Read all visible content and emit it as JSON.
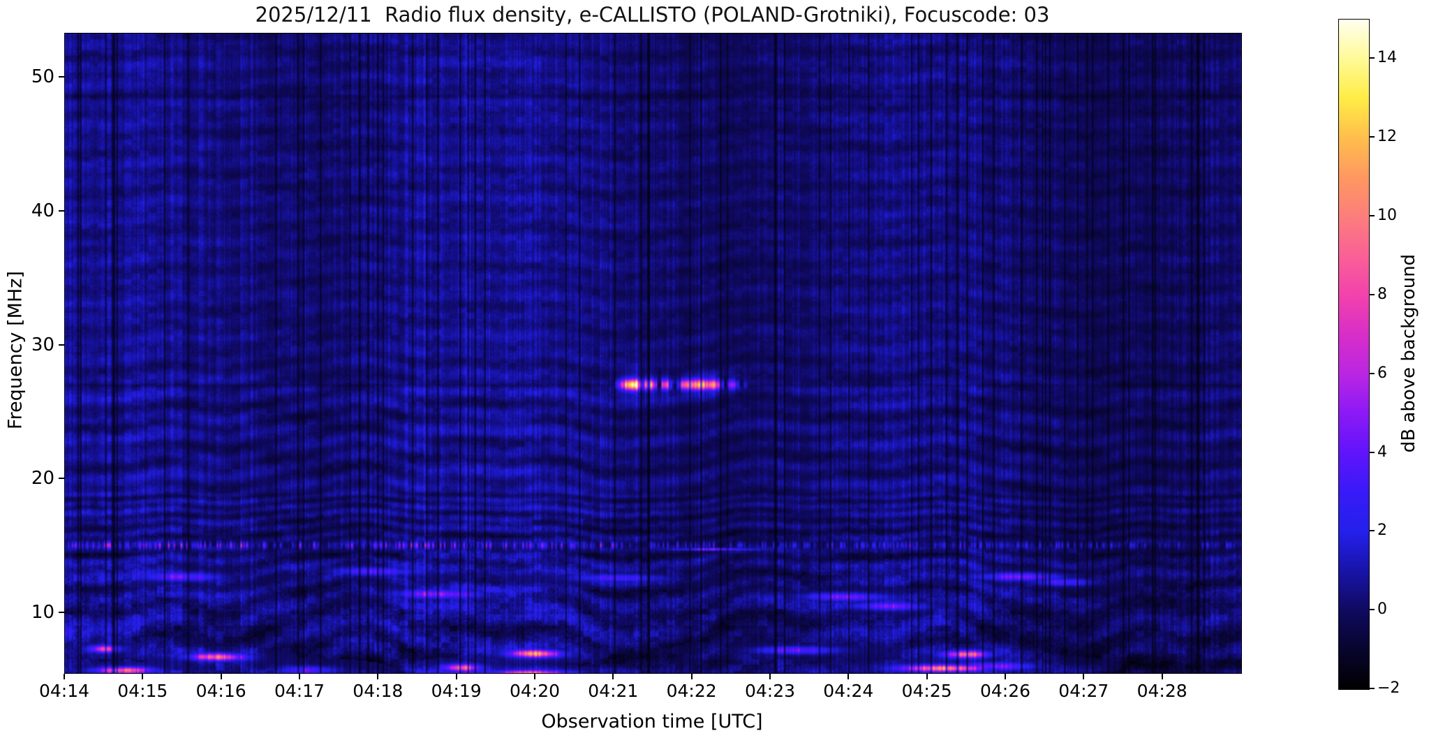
{
  "chart": {
    "title": "2025/12/11  Radio flux density, e-CALLISTO (POLAND-Grotniki), Focuscode: 03",
    "xlabel": "Observation time [UTC]",
    "ylabel": "Frequency [MHz]",
    "colorbar_label": "dB above background"
  },
  "chart_data": {
    "type": "heatmap",
    "title": "2025/12/11  Radio flux density, e-CALLISTO (POLAND-Grotniki), Focuscode: 03",
    "xlabel": "Observation time [UTC]",
    "ylabel": "Frequency [MHz]",
    "x_range_utc": [
      "04:14:00",
      "04:29:00"
    ],
    "x_ticks": [
      {
        "label": "04:14",
        "minute": 0
      },
      {
        "label": "04:15",
        "minute": 1
      },
      {
        "label": "04:16",
        "minute": 2
      },
      {
        "label": "04:17",
        "minute": 3
      },
      {
        "label": "04:18",
        "minute": 4
      },
      {
        "label": "04:19",
        "minute": 5
      },
      {
        "label": "04:20",
        "minute": 6
      },
      {
        "label": "04:21",
        "minute": 7
      },
      {
        "label": "04:22",
        "minute": 8
      },
      {
        "label": "04:23",
        "minute": 9
      },
      {
        "label": "04:24",
        "minute": 10
      },
      {
        "label": "04:25",
        "minute": 11
      },
      {
        "label": "04:26",
        "minute": 12
      },
      {
        "label": "04:27",
        "minute": 13
      },
      {
        "label": "04:28",
        "minute": 14
      }
    ],
    "y_range_mhz": [
      5.5,
      53.3
    ],
    "y_ticks": [
      {
        "label": "50",
        "value": 50
      },
      {
        "label": "40",
        "value": 40
      },
      {
        "label": "30",
        "value": 30
      },
      {
        "label": "20",
        "value": 20
      },
      {
        "label": "10",
        "value": 10
      }
    ],
    "colorbar": {
      "label": "dB above background",
      "range_db": [
        -2,
        15
      ],
      "ticks": [
        {
          "label": "14",
          "value": 14
        },
        {
          "label": "12",
          "value": 12
        },
        {
          "label": "10",
          "value": 10
        },
        {
          "label": "8",
          "value": 8
        },
        {
          "label": "6",
          "value": 6
        },
        {
          "label": "4",
          "value": 4
        },
        {
          "label": "2",
          "value": 2
        },
        {
          "label": "0",
          "value": 0
        },
        {
          "label": "−2",
          "value": -2
        }
      ],
      "colormap_stops": [
        [
          -2,
          0,
          0,
          0
        ],
        [
          -1,
          8,
          5,
          45
        ],
        [
          0,
          16,
          10,
          96
        ],
        [
          1,
          24,
          20,
          168
        ],
        [
          2,
          36,
          32,
          235
        ],
        [
          3,
          56,
          26,
          248
        ],
        [
          4,
          96,
          20,
          250
        ],
        [
          5,
          140,
          25,
          246
        ],
        [
          6,
          186,
          38,
          226
        ],
        [
          7,
          216,
          46,
          200
        ],
        [
          8,
          242,
          66,
          172
        ],
        [
          9,
          250,
          96,
          150
        ],
        [
          10,
          252,
          126,
          124
        ],
        [
          11,
          255,
          152,
          96
        ],
        [
          12,
          255,
          190,
          76
        ],
        [
          13,
          255,
          236,
          70
        ],
        [
          14,
          255,
          250,
          150
        ],
        [
          15.2,
          255,
          255,
          240
        ]
      ]
    },
    "features": {
      "narrowband_burst": {
        "description": "bright narrowband emission near 27 MHz between 04:21:00 and 04:22:40 UTC, peak ~15 dB above background",
        "center_mhz": 27.05,
        "t_start_min": 7.0,
        "bin_min": 0.05,
        "core_sigma_mhz": 0.38,
        "halo_sigma_mhz": 1.1,
        "segments_db": [
          3,
          5,
          8,
          12,
          15,
          14,
          9,
          5,
          10,
          11,
          6,
          0,
          8,
          9,
          4,
          0,
          3,
          11,
          12,
          12,
          12,
          12,
          12,
          11,
          11,
          12,
          9,
          4,
          0,
          6,
          7,
          3,
          0,
          2
        ]
      },
      "rfi_comb": {
        "description": "band of vertical RFI ticks near 15 MHz across whole record",
        "center_mhz": 15.05,
        "sigma_mhz": 0.27,
        "max_db": 8
      },
      "spectral_lines": [
        {
          "f": 48.6,
          "dv": -0.5,
          "hw": 0.18
        },
        {
          "f": 27.0,
          "dv": -0.55,
          "hw": 0.14
        },
        {
          "f": 26.5,
          "dv": 0.25,
          "hw": 0.35
        },
        {
          "f": 15.9,
          "dv": -0.55,
          "hw": 0.45
        },
        {
          "f": 14.35,
          "dv": -0.35,
          "hw": 0.35
        },
        {
          "f": 10.0,
          "dv": -0.4,
          "hw": 0.15
        },
        {
          "f": 8.95,
          "dv": -0.3,
          "hw": 0.12
        },
        {
          "f": 6.3,
          "dv": -0.7,
          "hw": 0.5
        },
        {
          "f": 5.65,
          "dv": 0.3,
          "hw": 0.18
        }
      ],
      "blobs": [
        {
          "t": 0.75,
          "f": 5.7,
          "a": 8.5,
          "st": 0.32,
          "sf": 0.22,
          "tilt": 0
        },
        {
          "t": 0.5,
          "f": 7.3,
          "a": 7.0,
          "st": 0.18,
          "sf": 0.25,
          "tilt": 0
        },
        {
          "t": 1.95,
          "f": 6.7,
          "a": 9.5,
          "st": 0.33,
          "sf": 0.26,
          "tilt": -0.8
        },
        {
          "t": 1.5,
          "f": 12.7,
          "a": 4.2,
          "st": 0.45,
          "sf": 0.3,
          "tilt": -1.5
        },
        {
          "t": 3.1,
          "f": 5.7,
          "a": 4.5,
          "st": 0.35,
          "sf": 0.3,
          "tilt": 0
        },
        {
          "t": 3.9,
          "f": 13.1,
          "a": 4.0,
          "st": 0.5,
          "sf": 0.28,
          "tilt": -1.8
        },
        {
          "t": 4.75,
          "f": 11.4,
          "a": 4.5,
          "st": 0.5,
          "sf": 0.3,
          "tilt": -1.5
        },
        {
          "t": 5.05,
          "f": 5.9,
          "a": 7.5,
          "st": 0.22,
          "sf": 0.25,
          "tilt": 0
        },
        {
          "t": 6.0,
          "f": 6.95,
          "a": 9.5,
          "st": 0.3,
          "sf": 0.26,
          "tilt": -0.8
        },
        {
          "t": 5.95,
          "f": 5.5,
          "a": 8.0,
          "st": 0.45,
          "sf": 0.2,
          "tilt": 0
        },
        {
          "t": 7.1,
          "f": 12.6,
          "a": 3.8,
          "st": 0.55,
          "sf": 0.28,
          "tilt": -1.5
        },
        {
          "t": 9.3,
          "f": 7.2,
          "a": 5.0,
          "st": 0.5,
          "sf": 0.28,
          "tilt": 0
        },
        {
          "t": 9.9,
          "f": 11.2,
          "a": 4.8,
          "st": 0.5,
          "sf": 0.28,
          "tilt": -1.2
        },
        {
          "t": 10.5,
          "f": 10.5,
          "a": 4.4,
          "st": 0.45,
          "sf": 0.28,
          "tilt": -1.2
        },
        {
          "t": 11.5,
          "f": 6.9,
          "a": 9.0,
          "st": 0.28,
          "sf": 0.26,
          "tilt": 0
        },
        {
          "t": 11.2,
          "f": 5.85,
          "a": 10.0,
          "st": 0.5,
          "sf": 0.24,
          "tilt": 0
        },
        {
          "t": 11.9,
          "f": 6.0,
          "a": 5.0,
          "st": 0.5,
          "sf": 0.3,
          "tilt": 0
        },
        {
          "t": 12.2,
          "f": 12.7,
          "a": 5.2,
          "st": 0.5,
          "sf": 0.28,
          "tilt": -1.0
        },
        {
          "t": 12.75,
          "f": 12.3,
          "a": 4.8,
          "st": 0.4,
          "sf": 0.28,
          "tilt": -1.0
        },
        {
          "t": 8.3,
          "f": 14.75,
          "a": 6.5,
          "st": 0.5,
          "sf": 0.09,
          "tilt": -2.5
        }
      ],
      "texture": {
        "seed": 11,
        "col_dark_fraction": 0.08,
        "ripple_wavelength_mhz_high": 1.45,
        "ripple_wavelength_mhz_low": 2.35,
        "base_db": 0.55
      }
    }
  }
}
